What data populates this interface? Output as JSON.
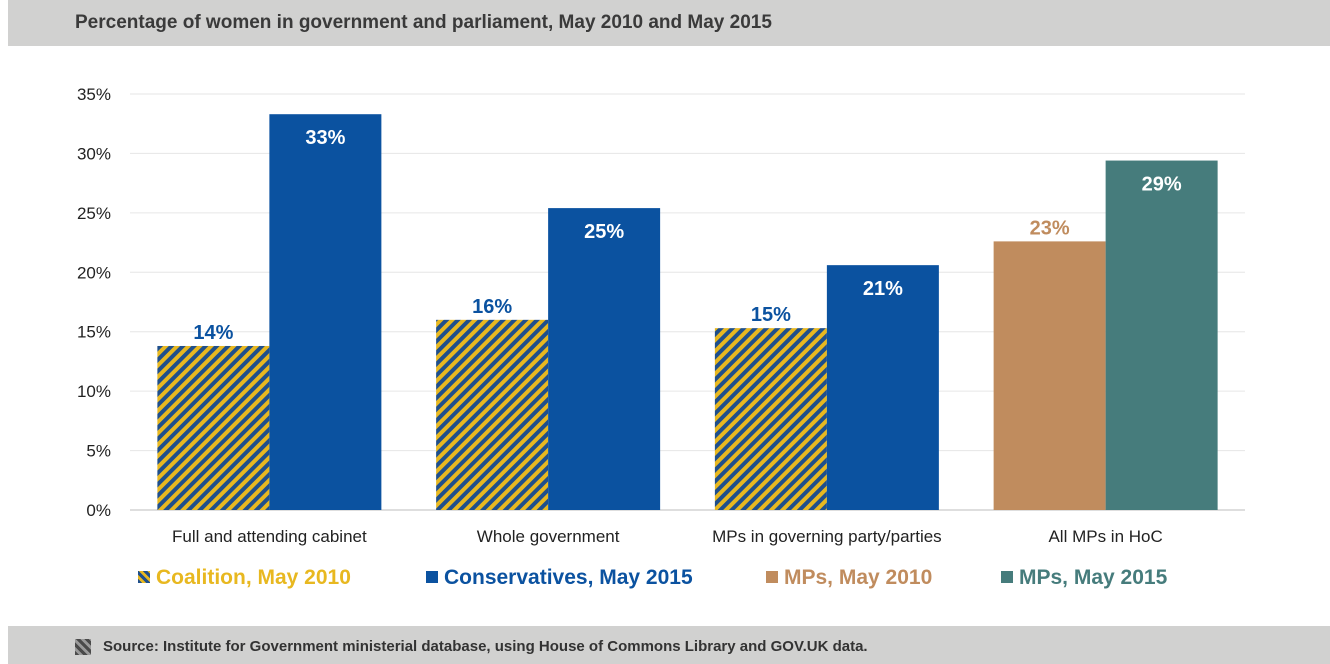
{
  "header": {
    "title": "Percentage of women in government and parliament, May 2010 and May 2015"
  },
  "footer": {
    "source": "Source:  Institute for Government ministerial database, using House of Commons Library and GOV.UK data.",
    "icon": "hatched-square-icon"
  },
  "colors": {
    "coalition_stripe_a": "#1f4f8c",
    "coalition_stripe_b": "#e8b820",
    "coalition_label": "#e8b820",
    "conservatives": "#0b52a0",
    "mps_2010": "#c08c5e",
    "mps_2015": "#467c7c",
    "grid": "#e6e6e6"
  },
  "chart_data": {
    "type": "bar",
    "categories": [
      "Full and attending cabinet",
      "Whole government",
      "MPs in governing party/parties",
      "All MPs in HoC"
    ],
    "ylim": [
      0,
      35
    ],
    "yticks": [
      "0%",
      "5%",
      "10%",
      "15%",
      "20%",
      "25%",
      "30%",
      "35%"
    ],
    "grid": true,
    "legend_position": "bottom",
    "bars": [
      {
        "category": "Full and attending cabinet",
        "series": "Coalition, May 2010",
        "value": 13.8,
        "label": "14%"
      },
      {
        "category": "Full and attending cabinet",
        "series": "Conservatives, May 2015",
        "value": 33.3,
        "label": "33%"
      },
      {
        "category": "Whole government",
        "series": "Coalition, May 2010",
        "value": 16.0,
        "label": "16%"
      },
      {
        "category": "Whole government",
        "series": "Conservatives, May 2015",
        "value": 25.4,
        "label": "25%"
      },
      {
        "category": "MPs in governing party/parties",
        "series": "Coalition, May 2010",
        "value": 15.3,
        "label": "15%"
      },
      {
        "category": "MPs in governing party/parties",
        "series": "Conservatives, May 2015",
        "value": 20.6,
        "label": "21%"
      },
      {
        "category": "All MPs in HoC",
        "series": "MPs, May 2010",
        "value": 22.6,
        "label": "23%"
      },
      {
        "category": "All MPs in HoC",
        "series": "MPs, May 2015",
        "value": 29.4,
        "label": "29%"
      }
    ],
    "legend": [
      {
        "name": "Coalition, May 2010",
        "style": "hatched"
      },
      {
        "name": "Conservatives, May 2015",
        "style": "solid"
      },
      {
        "name": "MPs, May 2010",
        "style": "solid"
      },
      {
        "name": "MPs, May 2015",
        "style": "solid"
      }
    ]
  }
}
